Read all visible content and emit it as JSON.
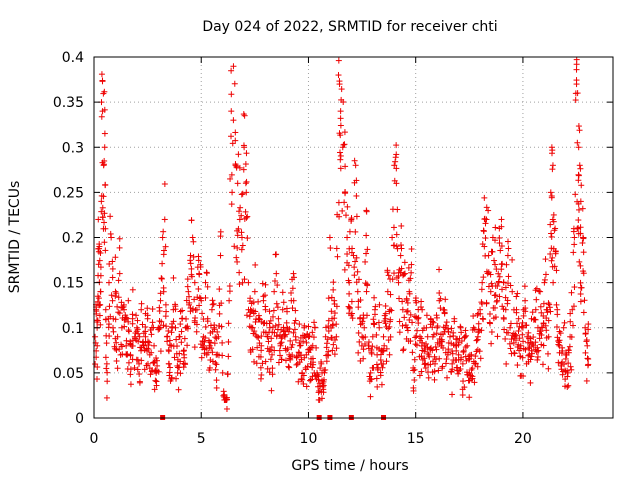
{
  "chart_data": {
    "type": "scatter",
    "title": "Day 024 of 2022, SRMTID for receiver chti",
    "xlabel": "GPS time / hours",
    "ylabel": "SRMTID / TECUs",
    "xlim": [
      0,
      24.2
    ],
    "ylim": [
      0,
      0.4
    ],
    "grid": true,
    "marker": "+",
    "color": "#ee0000",
    "x_ticks": [
      {
        "value": 0,
        "label": "0"
      },
      {
        "value": 5,
        "label": "5"
      },
      {
        "value": 10,
        "label": "10"
      },
      {
        "value": 15,
        "label": "15"
      },
      {
        "value": 20,
        "label": "20"
      }
    ],
    "y_ticks": [
      {
        "value": 0,
        "label": "0"
      },
      {
        "value": 0.05,
        "label": "0.05"
      },
      {
        "value": 0.1,
        "label": "0.1"
      },
      {
        "value": 0.15,
        "label": "0.15"
      },
      {
        "value": 0.2,
        "label": "0.2"
      },
      {
        "value": 0.25,
        "label": "0.25"
      },
      {
        "value": 0.3,
        "label": "0.3"
      },
      {
        "value": 0.35,
        "label": "0.35"
      },
      {
        "value": 0.4,
        "label": "0.4"
      }
    ],
    "baseline_markers_x": [
      3.2,
      10.5,
      11.0,
      12.0,
      13.5
    ],
    "series": [
      {
        "name": "SRMTID",
        "points": [
          [
            0.05,
            0.09
          ],
          [
            0.1,
            0.12
          ],
          [
            0.15,
            0.08
          ],
          [
            0.2,
            0.22
          ],
          [
            0.25,
            0.19
          ],
          [
            0.3,
            0.14
          ],
          [
            0.35,
            0.35
          ],
          [
            0.4,
            0.34
          ],
          [
            0.45,
            0.28
          ],
          [
            0.5,
            0.3
          ],
          [
            0.55,
            0.12
          ],
          [
            0.6,
            0.06
          ],
          [
            0.7,
            0.15
          ],
          [
            0.8,
            0.2
          ],
          [
            0.9,
            0.11
          ],
          [
            1.0,
            0.14
          ],
          [
            1.1,
            0.09
          ],
          [
            1.2,
            0.16
          ],
          [
            1.3,
            0.1
          ],
          [
            1.4,
            0.12
          ],
          [
            1.5,
            0.08
          ],
          [
            1.6,
            0.13
          ],
          [
            1.7,
            0.07
          ],
          [
            1.8,
            0.11
          ],
          [
            1.9,
            0.09
          ],
          [
            2.0,
            0.1
          ],
          [
            2.1,
            0.06
          ],
          [
            2.2,
            0.12
          ],
          [
            2.3,
            0.08
          ],
          [
            2.4,
            0.09
          ],
          [
            2.5,
            0.11
          ],
          [
            2.6,
            0.07
          ],
          [
            2.7,
            0.1
          ],
          [
            2.8,
            0.08
          ],
          [
            2.9,
            0.05
          ],
          [
            3.0,
            0.1
          ],
          [
            3.1,
            0.13
          ],
          [
            3.2,
            0.2
          ],
          [
            3.3,
            0.22
          ],
          [
            3.4,
            0.09
          ],
          [
            3.5,
            0.06
          ],
          [
            3.6,
            0.08
          ],
          [
            3.7,
            0.12
          ],
          [
            3.8,
            0.1
          ],
          [
            3.9,
            0.05
          ],
          [
            4.0,
            0.09
          ],
          [
            4.1,
            0.11
          ],
          [
            4.2,
            0.07
          ],
          [
            4.3,
            0.1
          ],
          [
            4.4,
            0.14
          ],
          [
            4.5,
            0.18
          ],
          [
            4.6,
            0.2
          ],
          [
            4.7,
            0.15
          ],
          [
            4.8,
            0.12
          ],
          [
            4.9,
            0.16
          ],
          [
            5.0,
            0.13
          ],
          [
            5.1,
            0.09
          ],
          [
            5.2,
            0.15
          ],
          [
            5.3,
            0.11
          ],
          [
            5.4,
            0.08
          ],
          [
            5.5,
            0.12
          ],
          [
            5.6,
            0.1
          ],
          [
            5.7,
            0.07
          ],
          [
            5.8,
            0.09
          ],
          [
            5.9,
            0.18
          ],
          [
            6.0,
            0.05
          ],
          [
            6.1,
            0.02
          ],
          [
            6.2,
            0.01
          ],
          [
            6.3,
            0.13
          ],
          [
            6.4,
            0.34
          ],
          [
            6.5,
            0.33
          ],
          [
            6.6,
            0.28
          ],
          [
            6.7,
            0.26
          ],
          [
            6.8,
            0.22
          ],
          [
            6.9,
            0.2
          ],
          [
            7.0,
            0.3
          ],
          [
            7.1,
            0.25
          ],
          [
            7.2,
            0.15
          ],
          [
            7.3,
            0.12
          ],
          [
            7.4,
            0.1
          ],
          [
            7.5,
            0.14
          ],
          [
            7.6,
            0.09
          ],
          [
            7.7,
            0.11
          ],
          [
            7.8,
            0.08
          ],
          [
            7.9,
            0.13
          ],
          [
            8.0,
            0.12
          ],
          [
            8.1,
            0.09
          ],
          [
            8.2,
            0.1
          ],
          [
            8.3,
            0.07
          ],
          [
            8.4,
            0.14
          ],
          [
            8.5,
            0.16
          ],
          [
            8.6,
            0.11
          ],
          [
            8.7,
            0.08
          ],
          [
            8.8,
            0.12
          ],
          [
            8.9,
            0.09
          ],
          [
            9.0,
            0.1
          ],
          [
            9.1,
            0.07
          ],
          [
            9.2,
            0.13
          ],
          [
            9.3,
            0.16
          ],
          [
            9.4,
            0.09
          ],
          [
            9.5,
            0.06
          ],
          [
            9.6,
            0.08
          ],
          [
            9.7,
            0.05
          ],
          [
            9.8,
            0.1
          ],
          [
            9.9,
            0.07
          ],
          [
            10.0,
            0.09
          ],
          [
            10.1,
            0.06
          ],
          [
            10.2,
            0.08
          ],
          [
            10.3,
            0.1
          ],
          [
            10.4,
            0.05
          ],
          [
            10.5,
            0.03
          ],
          [
            10.6,
            0.06
          ],
          [
            10.7,
            0.04
          ],
          [
            10.8,
            0.09
          ],
          [
            10.9,
            0.07
          ],
          [
            11.0,
            0.2
          ],
          [
            11.1,
            0.11
          ],
          [
            11.2,
            0.13
          ],
          [
            11.3,
            0.09
          ],
          [
            11.4,
            0.38
          ],
          [
            11.45,
            0.37
          ],
          [
            11.5,
            0.34
          ],
          [
            11.6,
            0.3
          ],
          [
            11.7,
            0.25
          ],
          [
            11.8,
            0.2
          ],
          [
            11.9,
            0.15
          ],
          [
            12.0,
            0.22
          ],
          [
            12.1,
            0.18
          ],
          [
            12.2,
            0.28
          ],
          [
            12.3,
            0.14
          ],
          [
            12.4,
            0.11
          ],
          [
            12.5,
            0.09
          ],
          [
            12.6,
            0.1
          ],
          [
            12.7,
            0.23
          ],
          [
            12.8,
            0.08
          ],
          [
            12.9,
            0.05
          ],
          [
            13.0,
            0.09
          ],
          [
            13.1,
            0.12
          ],
          [
            13.2,
            0.07
          ],
          [
            13.3,
            0.1
          ],
          [
            13.4,
            0.06
          ],
          [
            13.5,
            0.09
          ],
          [
            13.6,
            0.11
          ],
          [
            13.7,
            0.14
          ],
          [
            13.8,
            0.12
          ],
          [
            13.9,
            0.2
          ],
          [
            14.0,
            0.28
          ],
          [
            14.1,
            0.26
          ],
          [
            14.2,
            0.15
          ],
          [
            14.3,
            0.18
          ],
          [
            14.4,
            0.12
          ],
          [
            14.5,
            0.16
          ],
          [
            14.6,
            0.1
          ],
          [
            14.7,
            0.14
          ],
          [
            14.8,
            0.17
          ],
          [
            14.9,
            0.03
          ],
          [
            15.0,
            0.13
          ],
          [
            15.1,
            0.11
          ],
          [
            15.2,
            0.09
          ],
          [
            15.3,
            0.12
          ],
          [
            15.4,
            0.08
          ],
          [
            15.5,
            0.1
          ],
          [
            15.6,
            0.07
          ],
          [
            15.7,
            0.11
          ],
          [
            15.8,
            0.09
          ],
          [
            15.9,
            0.06
          ],
          [
            16.0,
            0.1
          ],
          [
            16.1,
            0.13
          ],
          [
            16.2,
            0.08
          ],
          [
            16.3,
            0.12
          ],
          [
            16.4,
            0.1
          ],
          [
            16.5,
            0.07
          ],
          [
            16.6,
            0.09
          ],
          [
            16.7,
            0.06
          ],
          [
            16.8,
            0.11
          ],
          [
            16.9,
            0.08
          ],
          [
            17.0,
            0.07
          ],
          [
            17.1,
            0.1
          ],
          [
            17.2,
            0.06
          ],
          [
            17.3,
            0.09
          ],
          [
            17.4,
            0.08
          ],
          [
            17.5,
            0.05
          ],
          [
            17.6,
            0.07
          ],
          [
            17.7,
            0.1
          ],
          [
            17.8,
            0.06
          ],
          [
            17.9,
            0.09
          ],
          [
            18.0,
            0.12
          ],
          [
            18.1,
            0.15
          ],
          [
            18.2,
            0.19
          ],
          [
            18.3,
            0.22
          ],
          [
            18.4,
            0.18
          ],
          [
            18.5,
            0.14
          ],
          [
            18.6,
            0.2
          ],
          [
            18.7,
            0.17
          ],
          [
            18.8,
            0.13
          ],
          [
            18.9,
            0.21
          ],
          [
            19.0,
            0.22
          ],
          [
            19.1,
            0.15
          ],
          [
            19.2,
            0.12
          ],
          [
            19.3,
            0.18
          ],
          [
            19.4,
            0.1
          ],
          [
            19.5,
            0.14
          ],
          [
            19.6,
            0.09
          ],
          [
            19.7,
            0.12
          ],
          [
            19.8,
            0.11
          ],
          [
            19.9,
            0.08
          ],
          [
            20.0,
            0.1
          ],
          [
            20.1,
            0.13
          ],
          [
            20.2,
            0.09
          ],
          [
            20.3,
            0.07
          ],
          [
            20.4,
            0.11
          ],
          [
            20.5,
            0.08
          ],
          [
            20.6,
            0.12
          ],
          [
            20.7,
            0.1
          ],
          [
            20.8,
            0.14
          ],
          [
            20.9,
            0.1
          ],
          [
            21.0,
            0.15
          ],
          [
            21.1,
            0.12
          ],
          [
            21.2,
            0.09
          ],
          [
            21.3,
            0.25
          ],
          [
            21.35,
            0.3
          ],
          [
            21.4,
            0.28
          ],
          [
            21.5,
            0.21
          ],
          [
            21.6,
            0.12
          ],
          [
            21.7,
            0.08
          ],
          [
            21.8,
            0.06
          ],
          [
            21.9,
            0.1
          ],
          [
            22.0,
            0.07
          ],
          [
            22.1,
            0.05
          ],
          [
            22.2,
            0.09
          ],
          [
            22.3,
            0.12
          ],
          [
            22.4,
            0.2
          ],
          [
            22.5,
            0.37
          ],
          [
            22.55,
            0.36
          ],
          [
            22.6,
            0.3
          ],
          [
            22.65,
            0.28
          ],
          [
            22.7,
            0.24
          ],
          [
            22.8,
            0.2
          ],
          [
            22.9,
            0.1
          ],
          [
            23.0,
            0.08
          ]
        ]
      }
    ]
  }
}
